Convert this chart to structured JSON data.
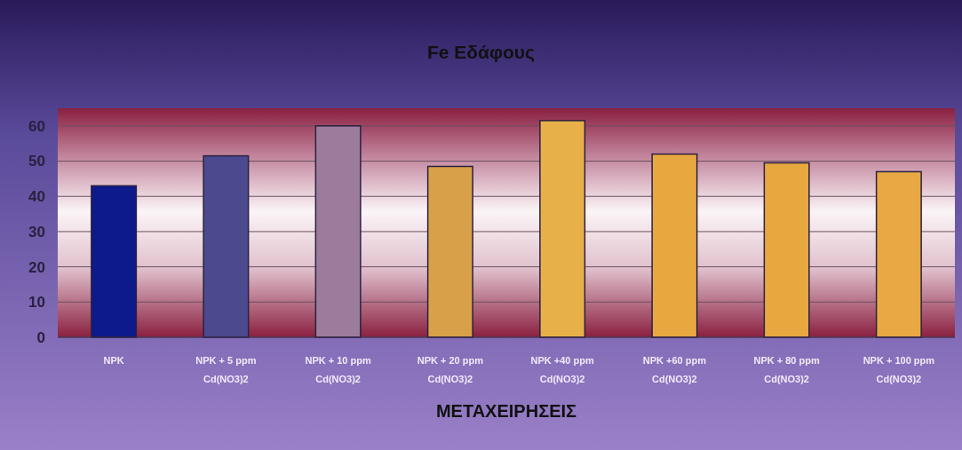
{
  "chart_data": {
    "type": "bar",
    "title": "Fe Εδάφους",
    "xlabel": "ΜΕΤΑΧΕΙΡΗΣΕΙΣ",
    "categories": [
      "NPK",
      "NPK + 5 ppm\nCd(NO3)2",
      "NPK + 10 ppm\nCd(NO3)2",
      "NPK + 20 ppm\nCd(NO3)2",
      "NPK +40 ppm\nCd(NO3)2",
      "NPK +60 ppm\nCd(NO3)2",
      "NPK + 80 ppm\nCd(NO3)2",
      "NPK + 100 ppm\nCd(NO3)2"
    ],
    "values": [
      43,
      51.5,
      60,
      48.5,
      61.5,
      52,
      49.5,
      47
    ],
    "colors": [
      "#0c1a8c",
      "#4c4a8e",
      "#9c7c9c",
      "#d8a048",
      "#e8b048",
      "#e8a840",
      "#e8a840",
      "#e8a844"
    ],
    "ylim": [
      0,
      65
    ],
    "yticks": [
      0,
      10,
      20,
      30,
      40,
      50,
      60
    ],
    "grid": "y"
  }
}
